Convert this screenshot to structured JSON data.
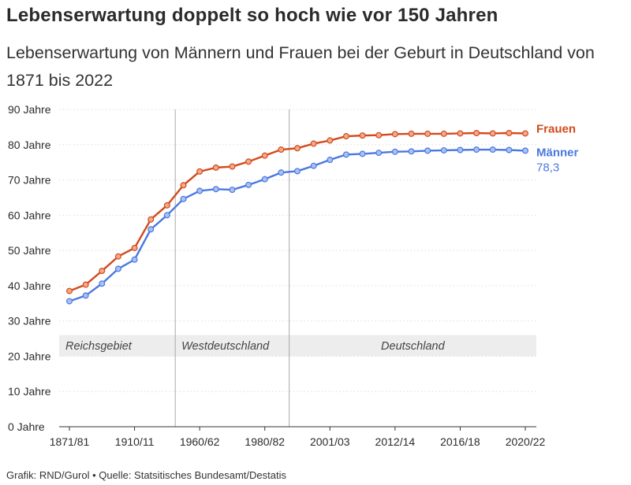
{
  "chart_data": {
    "type": "line",
    "title": "Lebenserwartung doppelt so hoch wie vor 150 Jahren",
    "subtitle": "Lebenserwartung von Männern und Frauen bei der Geburt in Deutschland von 1871 bis 2022",
    "source": "Grafik: RND/Gurol • Quelle: Statsitisches Bundesamt/Destatis",
    "ylim": [
      0,
      90
    ],
    "y_ticks": [
      {
        "value": 0,
        "label": "0 Jahre"
      },
      {
        "value": 10,
        "label": "10 Jahre"
      },
      {
        "value": 20,
        "label": "20 Jahre"
      },
      {
        "value": 30,
        "label": "30 Jahre"
      },
      {
        "value": 40,
        "label": "40 Jahre"
      },
      {
        "value": 50,
        "label": "50 Jahre"
      },
      {
        "value": 60,
        "label": "60 Jahre"
      },
      {
        "value": 70,
        "label": "70 Jahre"
      },
      {
        "value": 80,
        "label": "80 Jahre"
      },
      {
        "value": 90,
        "label": "90 Jahre"
      }
    ],
    "x_tick_labels": [
      "1871/81",
      "1910/11",
      "1960/62",
      "1980/82",
      "2001/03",
      "2012/14",
      "2016/18",
      "2020/22"
    ],
    "x_tick_indices": [
      0,
      4,
      8,
      12,
      16,
      20,
      24,
      28
    ],
    "grid": true,
    "regions": [
      {
        "label": "Reichsgebiet",
        "start_index": 0,
        "end_index": 6
      },
      {
        "label": "Westdeutschland",
        "start_index": 7,
        "end_index": 13
      },
      {
        "label": "Deutschland",
        "start_index": 14,
        "end_index": 28
      }
    ],
    "region_band": [
      20,
      26
    ],
    "series": [
      {
        "name": "Frauen",
        "color": "#d24a1c",
        "marker_color": "#f4a98a",
        "values": [
          38.5,
          40.3,
          44.2,
          48.3,
          50.7,
          58.8,
          62.8,
          68.5,
          72.4,
          73.5,
          73.8,
          75.2,
          76.9,
          78.6,
          79.0,
          80.3,
          81.2,
          82.4,
          82.6,
          82.7,
          83.0,
          83.1,
          83.1,
          83.1,
          83.2,
          83.3,
          83.2,
          83.3,
          83.2
        ]
      },
      {
        "name": "Männer",
        "color": "#4a78e0",
        "marker_color": "#a9c1f3",
        "end_label": "78,3",
        "values": [
          35.6,
          37.2,
          40.6,
          44.8,
          47.4,
          56.0,
          60.0,
          64.6,
          66.9,
          67.4,
          67.2,
          68.6,
          70.2,
          72.1,
          72.5,
          74.0,
          75.7,
          77.2,
          77.4,
          77.7,
          78.0,
          78.1,
          78.3,
          78.4,
          78.5,
          78.6,
          78.6,
          78.5,
          78.3
        ]
      }
    ]
  }
}
